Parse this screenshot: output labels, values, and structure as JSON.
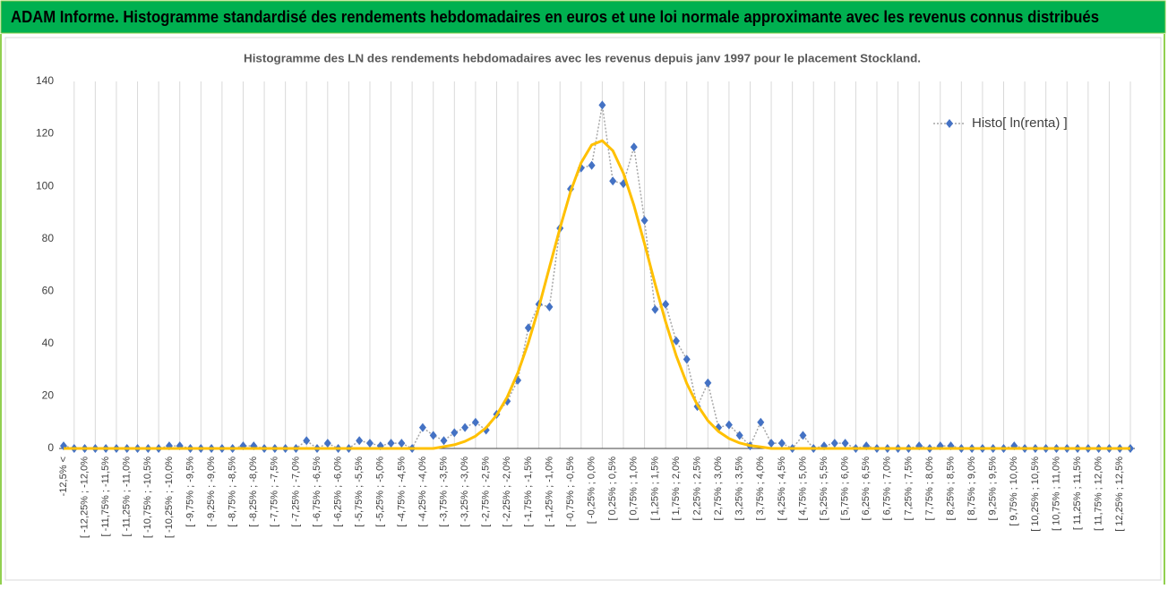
{
  "header": {
    "title": "ADAM Informe. Histogramme standardisé des rendements hebdomadaires en euros et une loi normale approximante avec les revenus connus distribués"
  },
  "chart_data": {
    "type": "line",
    "title": "Histogramme des LN des rendements hebdomadaires avec les revenus depuis janv 1997 pour le placement Stockland.",
    "categories": [
      "-12,5% <",
      null,
      "[ -12,25% ; -12,0%",
      null,
      "[ -11,75% ; -11,5%",
      null,
      "[ -11,25% ; -11,0%",
      null,
      "[ -10,75% ; -10,5%",
      null,
      "[ -10,25% ; -10,0%",
      null,
      "[ -9,75% ; -9,5%",
      null,
      "[ -9,25% ; -9,0%",
      null,
      "[ -8,75% ; -8,5%",
      null,
      "[ -8,25% ; -8,0%",
      null,
      "[ -7,75% ; -7,5%",
      null,
      "[ -7,25% ; -7,0%",
      null,
      "[ -6,75% ; -6,5%",
      null,
      "[ -6,25% ; -6,0%",
      null,
      "[ -5,75% ; -5,5%",
      null,
      "[ -5,25% ; -5,0%",
      null,
      "[ -4,75% ; -4,5%",
      null,
      "[ -4,25% ; -4,0%",
      null,
      "[ -3,75% ; -3,5%",
      null,
      "[ -3,25% ; -3,0%",
      null,
      "[ -2,75% ; -2,5%",
      null,
      "[ -2,25% ; -2,0%",
      null,
      "[ -1,75% ; -1,5%",
      null,
      "[ -1,25% ; -1,0%",
      null,
      "[ -0,75% ; -0,5%",
      null,
      "[ -0,25% ; 0,0%",
      null,
      "[ 0,25% ; 0,5%",
      null,
      "[ 0,75% ; 1,0%",
      null,
      "[ 1,25% ; 1,5%",
      null,
      "[ 1,75% ; 2,0%",
      null,
      "[ 2,25% ; 2,5%",
      null,
      "[ 2,75% ; 3,0%",
      null,
      "[ 3,25% ; 3,5%",
      null,
      "[ 3,75% ; 4,0%",
      null,
      "[ 4,25% ; 4,5%",
      null,
      "[ 4,75% ; 5,0%",
      null,
      "[ 5,25% ; 5,5%",
      null,
      "[ 5,75% ; 6,0%",
      null,
      "[ 6,25% ; 6,5%",
      null,
      "[ 6,75% ; 7,0%",
      null,
      "[ 7,25% ; 7,5%",
      null,
      "[ 7,75% ; 8,0%",
      null,
      "[ 8,25% ; 8,5%",
      null,
      "[ 8,75% ; 9,0%",
      null,
      "[ 9,25% ; 9,5%",
      null,
      "[ 9,75% ; 10,0%",
      null,
      "[ 10,25% ; 10,5%",
      null,
      "[ 10,75% ; 11,0%",
      null,
      "[ 11,25% ; 11,5%",
      null,
      "[ 11,75% ; 12,0%",
      null,
      "[ 12,25% ; 12,5%",
      null
    ],
    "series": [
      {
        "name": "Histo[ ln(renta) ]",
        "color": "#4472c4",
        "line_color": "#a6a6a6",
        "values": [
          1,
          0,
          0,
          0,
          0,
          0,
          0,
          0,
          0,
          0,
          1,
          1,
          0,
          0,
          0,
          0,
          0,
          1,
          1,
          0,
          0,
          0,
          0,
          3,
          0,
          2,
          0,
          0,
          3,
          2,
          1,
          2,
          2,
          0,
          8,
          5,
          3,
          6,
          8,
          10,
          7,
          13,
          18,
          26,
          46,
          55,
          54,
          84,
          99,
          107,
          108,
          131,
          102,
          101,
          115,
          87,
          53,
          55,
          41,
          34,
          16,
          25,
          8,
          9,
          5,
          1,
          10,
          2,
          2,
          0,
          5,
          0,
          1,
          2,
          2,
          0,
          1,
          0,
          0,
          0,
          0,
          1,
          0,
          1,
          1,
          0,
          0,
          0,
          0,
          0,
          1,
          0,
          0,
          0,
          0,
          0,
          0,
          0,
          0,
          0,
          0,
          0
        ]
      },
      {
        "color": "#ffc000",
        "values": [
          0,
          0,
          0,
          0,
          0,
          0,
          0,
          0,
          0,
          0,
          0,
          0,
          0,
          0,
          0,
          0,
          0,
          0,
          0,
          0,
          0,
          0,
          0,
          0,
          0,
          0,
          0,
          0,
          0,
          0,
          0,
          0,
          0,
          0,
          0,
          0,
          0.7,
          1.4,
          2.7,
          4.7,
          7.9,
          12.7,
          19.6,
          28.8,
          40.3,
          53.9,
          69.1,
          84.1,
          98,
          109,
          115.8,
          117.4,
          113.6,
          105,
          92.7,
          78.1,
          62.8,
          48.3,
          35.4,
          24.8,
          16.6,
          10.6,
          6.5,
          3.8,
          2.1,
          1.1,
          0.6,
          0,
          0,
          0,
          0,
          0,
          0,
          0,
          0,
          0,
          0,
          0,
          0,
          0,
          0,
          0,
          0,
          0,
          0,
          0,
          0,
          0,
          0,
          0,
          0,
          0,
          0,
          0,
          0,
          0,
          0,
          0,
          0,
          0,
          0,
          0
        ]
      }
    ],
    "ylim": [
      0,
      140
    ],
    "yticks": [
      0,
      20,
      40,
      60,
      80,
      100,
      120,
      140
    ],
    "xgrid": true,
    "legend": "upper right"
  }
}
